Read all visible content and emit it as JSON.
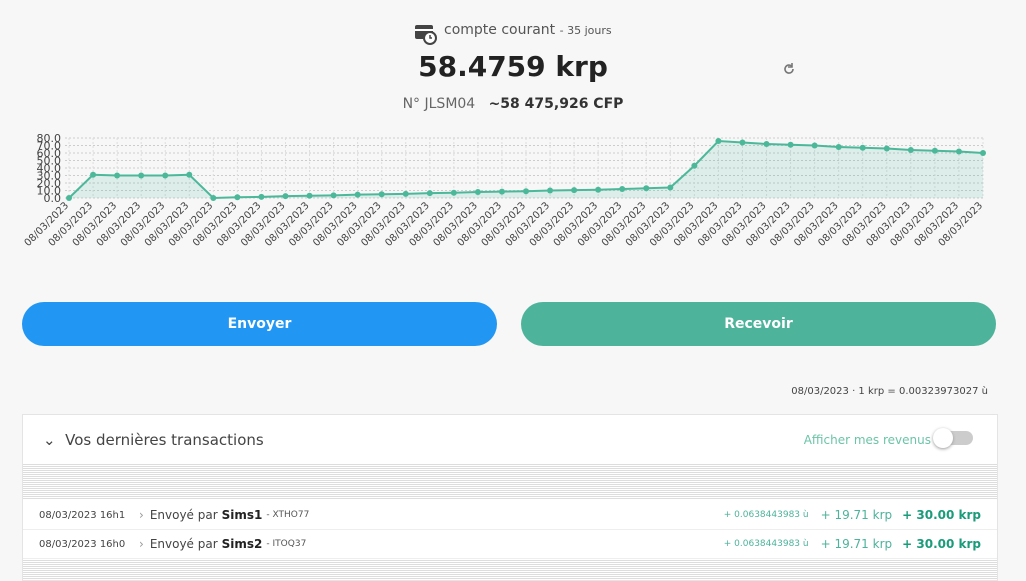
{
  "header": {
    "account_label": "compte courant",
    "period": "- 35 jours",
    "balance": "58.4759 krp",
    "account_id": "N° JLSM04",
    "fiat": "~58 475,926 CFP"
  },
  "chart_data": {
    "type": "line",
    "color": "#4cb89a",
    "grid": true,
    "categories": [
      "08/03/2023",
      "08/03/2023",
      "08/03/2023",
      "08/03/2023",
      "08/03/2023",
      "08/03/2023",
      "08/03/2023",
      "08/03/2023",
      "08/03/2023",
      "08/03/2023",
      "08/03/2023",
      "08/03/2023",
      "08/03/2023",
      "08/03/2023",
      "08/03/2023",
      "08/03/2023",
      "08/03/2023",
      "08/03/2023",
      "08/03/2023",
      "08/03/2023",
      "08/03/2023",
      "08/03/2023",
      "08/03/2023",
      "08/03/2023",
      "08/03/2023",
      "08/03/2023",
      "08/03/2023",
      "08/03/2023",
      "08/03/2023",
      "08/03/2023",
      "08/03/2023",
      "08/03/2023",
      "08/03/2023",
      "08/03/2023",
      "08/03/2023",
      "08/03/2023",
      "08/03/2023",
      "08/03/2023",
      "08/03/2023"
    ],
    "values": [
      0,
      31,
      30,
      30,
      30,
      31,
      0,
      1,
      1.5,
      2.5,
      3,
      3.5,
      4.5,
      5,
      5.5,
      6.5,
      7,
      8,
      8.5,
      9,
      10,
      10.5,
      11,
      12,
      13,
      14,
      43,
      76,
      74,
      72,
      71,
      70,
      68,
      67,
      66,
      64,
      63,
      62,
      60
    ],
    "ylim": [
      0,
      80
    ],
    "yticks": [
      {
        "value": 0,
        "label": "0.0"
      },
      {
        "value": 10,
        "label": "10.0"
      },
      {
        "value": 20,
        "label": "20.0"
      },
      {
        "value": 30,
        "label": "30.0"
      },
      {
        "value": 40,
        "label": "40.0"
      },
      {
        "value": 50,
        "label": "50.0"
      },
      {
        "value": 60,
        "label": "60.0"
      },
      {
        "value": 70,
        "label": "70.0"
      },
      {
        "value": 80,
        "label": "80.0"
      }
    ]
  },
  "buttons": {
    "send": "Envoyer",
    "receive": "Recevoir"
  },
  "rate": "08/03/2023 · 1 krp = 0.00323973027 ù",
  "transactions": {
    "title": "Vos dernières transactions",
    "toggle_label": "Afficher mes revenus",
    "rows": [
      {
        "date": "08/03/2023 16h1",
        "prefix": "Envoyé par",
        "name": "Sims1",
        "code": "- XTHO77",
        "small": "+ 0.0638443983 ù",
        "krp": "+ 19.71 krp",
        "total": "+ 30.00 krp"
      },
      {
        "date": "08/03/2023 16h0",
        "prefix": "Envoyé par",
        "name": "Sims2",
        "code": "- ITOQ37",
        "small": "+ 0.0638443983 ù",
        "krp": "+ 19.71 krp",
        "total": "+ 30.00 krp"
      }
    ]
  }
}
